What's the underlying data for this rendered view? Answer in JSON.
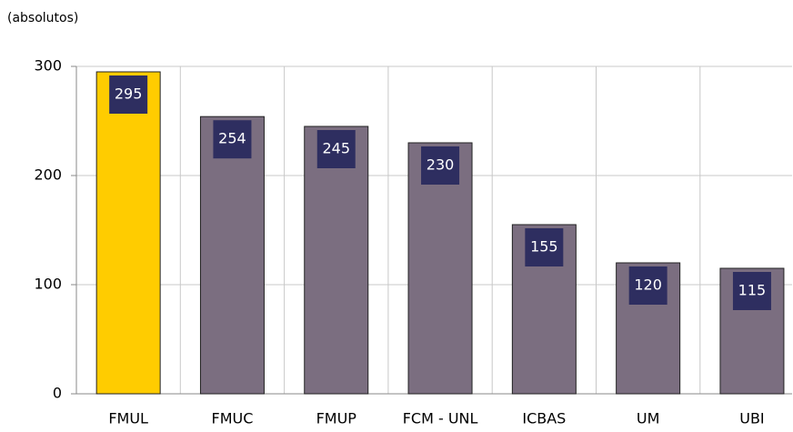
{
  "chart_data": {
    "type": "bar",
    "ylabel": "(absolutos)",
    "categories": [
      "FMUL",
      "FMUC",
      "FMUP",
      "FCM - UNL",
      "ICBAS",
      "UM",
      "UBI"
    ],
    "values": [
      295,
      254,
      245,
      230,
      155,
      120,
      115
    ],
    "colors": [
      "#ffcc00",
      "#7b6e80",
      "#7b6e80",
      "#7b6e80",
      "#7b6e80",
      "#7b6e80",
      "#7b6e80"
    ],
    "label_box_color": "#2e2e60",
    "ylim": [
      0,
      300
    ],
    "yticks": [
      0,
      100,
      200,
      300
    ],
    "grid": true
  }
}
